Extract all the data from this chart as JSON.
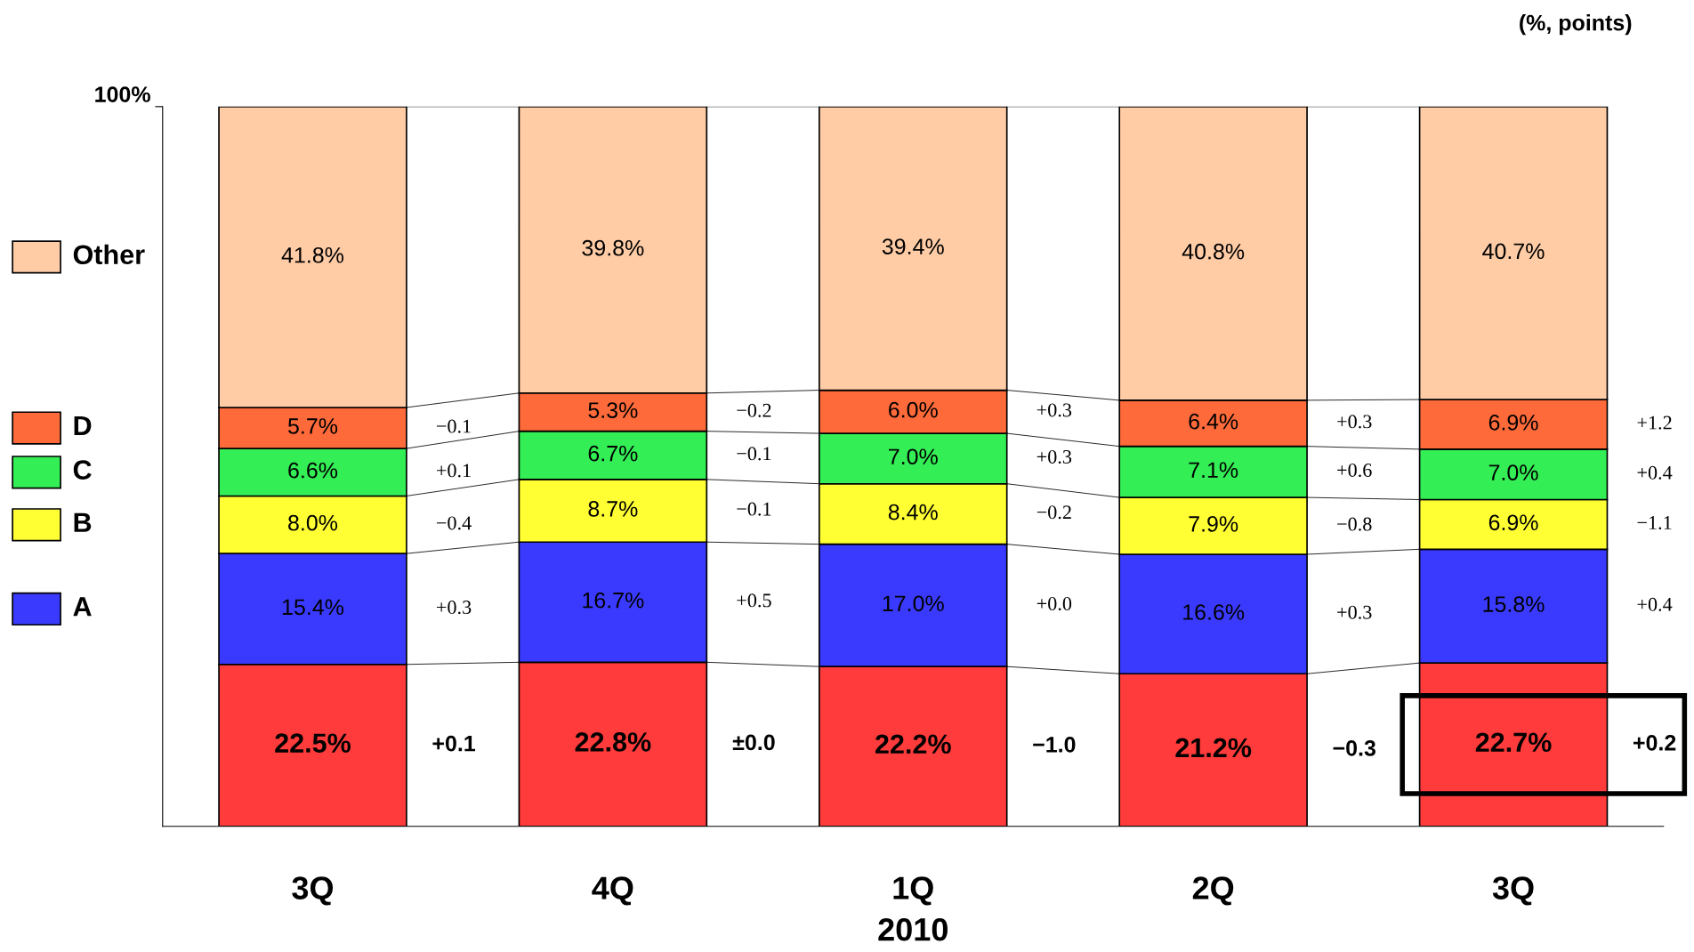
{
  "chart_data": {
    "type": "bar",
    "stacked": true,
    "categories": [
      "3Q",
      "4Q",
      "1Q",
      "2Q",
      "3Q"
    ],
    "ylim": [
      0,
      100
    ],
    "yticks": [
      {
        "value": 100,
        "label": "100%"
      }
    ],
    "legend": "left",
    "grid": false,
    "series": [
      {
        "color": "#ff3b3b",
        "values": [
          22.5,
          22.8,
          22.2,
          21.2,
          22.7
        ],
        "value_labels": [
          "22.5%",
          "22.8%",
          "22.2%",
          "21.2%",
          "22.7%"
        ]
      },
      {
        "name": "A",
        "color": "#3a3aff",
        "values": [
          15.4,
          16.7,
          17.0,
          16.6,
          15.8
        ],
        "value_labels": [
          "15.4%",
          "16.7%",
          "17.0%",
          "16.6%",
          "15.8%"
        ]
      },
      {
        "name": "B",
        "color": "#ffff33",
        "values": [
          8.0,
          8.7,
          8.4,
          7.9,
          6.9
        ],
        "value_labels": [
          "8.0%",
          "8.7%",
          "8.4%",
          "7.9%",
          "6.9%"
        ]
      },
      {
        "name": "C",
        "color": "#33ee55",
        "values": [
          6.6,
          6.7,
          7.0,
          7.1,
          7.0
        ],
        "value_labels": [
          "6.6%",
          "6.7%",
          "7.0%",
          "7.1%",
          "7.0%"
        ]
      },
      {
        "name": "D",
        "color": "#ff6a3a",
        "values": [
          5.7,
          5.3,
          6.0,
          6.4,
          6.9
        ],
        "value_labels": [
          "5.7%",
          "5.3%",
          "6.0%",
          "6.4%",
          "6.9%"
        ]
      },
      {
        "name": "Other",
        "color": "#ffcca6",
        "values": [
          41.8,
          39.8,
          39.4,
          40.8,
          40.7
        ],
        "value_labels": [
          "41.8%",
          "39.8%",
          "39.4%",
          "40.8%",
          "40.7%"
        ]
      }
    ],
    "annotations": [
      "(%, points)",
      "2010",
      "+0.1",
      "+0.3",
      "−0.4",
      "+0.1",
      "−0.1",
      "±0.0",
      "+0.5",
      "−0.1",
      "−0.1",
      "−0.2",
      "−1.0",
      "+0.0",
      "−0.2",
      "+0.3",
      "+0.3",
      "−0.3",
      "+0.3",
      "−0.8",
      "+0.6",
      "+0.3",
      "+0.2",
      "+0.4",
      "−1.1",
      "+0.4",
      "+1.2"
    ]
  }
}
